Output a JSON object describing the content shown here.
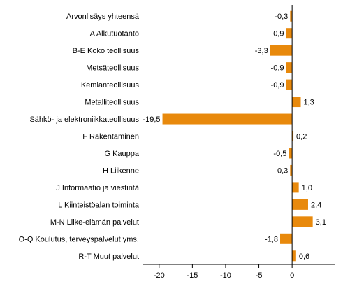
{
  "chart_data": {
    "type": "bar",
    "orientation": "horizontal",
    "categories": [
      "Arvonlisäys yhteensä",
      "A Alkutuotanto",
      "B-E Koko teollisuus",
      "Metsäteollisuus",
      "Kemianteollisuus",
      "Metalliteollisuus",
      "Sähkö- ja elektroniikkateollisuus",
      "F Rakentaminen",
      "G Kauppa",
      "H Liikenne",
      "J Informaatio ja viestintä",
      "L Kiinteistöalan toiminta",
      "M-N Liike-elämän palvelut",
      "O-Q Koulutus, terveyspalvelut yms.",
      "R-T Muut palvelut"
    ],
    "values": [
      -0.3,
      -0.9,
      -3.3,
      -0.9,
      -0.9,
      1.3,
      -19.5,
      0.2,
      -0.5,
      -0.3,
      1.0,
      2.4,
      3.1,
      -1.8,
      0.6
    ],
    "value_labels": [
      "-0,3",
      "-0,9",
      "-3,3",
      "-0,9",
      "-0,9",
      "1,3",
      "-19,5",
      "0,2",
      "-0,5",
      "-0,3",
      "1,0",
      "2,4",
      "3,1",
      "-1,8",
      "0,6"
    ],
    "xlim": [
      -22.5,
      6.5
    ],
    "xticks": [
      -20,
      -15,
      -10,
      -5,
      0
    ],
    "xtick_labels": [
      "-20",
      "-15",
      "-10",
      "-5",
      "0"
    ],
    "bar_color": "#e8890c",
    "grid": false,
    "legend": "none",
    "title": "",
    "xlabel": "",
    "ylabel": ""
  }
}
